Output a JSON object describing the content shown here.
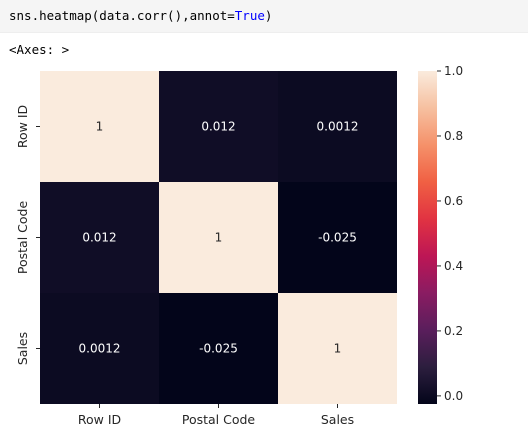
{
  "code_cell": {
    "func_text": "sns.heatmap(data.corr(),annot=",
    "kw_true": "True",
    "close": ")"
  },
  "output": {
    "repr_text": "<Axes: >"
  },
  "colors": {
    "cell_background": "#f5f5f5",
    "keyword_true": "#0000ff",
    "colormap": [
      "#03051a",
      "#2c1e3e",
      "#5a1e5c",
      "#8a1c62",
      "#bd1655",
      "#e13342",
      "#f06043",
      "#f5916a",
      "#f6c0a0",
      "#faebdd"
    ]
  },
  "chart_data": {
    "type": "heatmap",
    "rows": [
      "Row ID",
      "Postal Code",
      "Sales"
    ],
    "columns": [
      "Row ID",
      "Postal Code",
      "Sales"
    ],
    "values": [
      [
        1,
        0.012,
        0.0012
      ],
      [
        0.012,
        1,
        -0.025
      ],
      [
        0.0012,
        -0.025,
        1
      ]
    ],
    "annotations": [
      [
        "1",
        "0.012",
        "0.0012"
      ],
      [
        "0.012",
        "1",
        "-0.025"
      ],
      [
        "0.0012",
        "-0.025",
        "1"
      ]
    ],
    "vmin": -0.025,
    "vmax": 1,
    "colorbar_ticks": [
      "0.0",
      "0.2",
      "0.4",
      "0.6",
      "0.8",
      "1.0"
    ],
    "colorbar_values": [
      0.0,
      0.2,
      0.4,
      0.6,
      0.8,
      1.0
    ],
    "colormap_name": "rocket",
    "title": "",
    "xlabel": "",
    "ylabel": ""
  }
}
